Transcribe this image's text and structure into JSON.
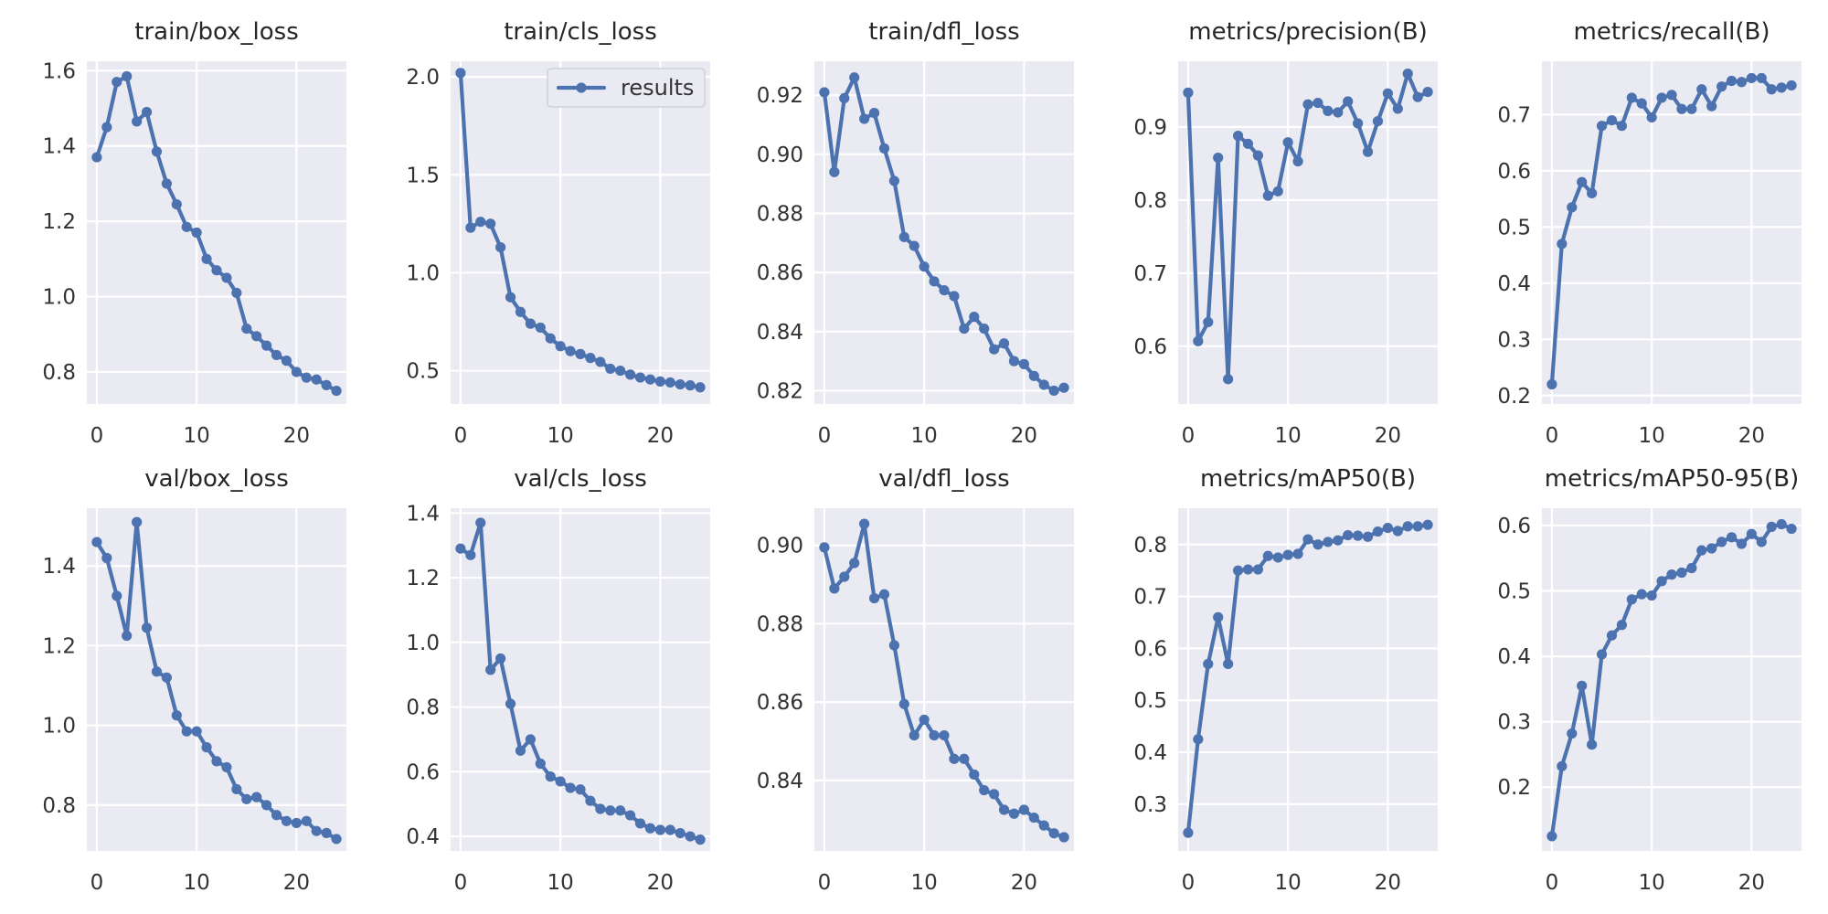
{
  "figure": {
    "line_color": "#4c72b0",
    "background": "#eaeaf2",
    "grid_color": "#ffffff"
  },
  "legend": {
    "label": "results",
    "panel": "train/cls_loss",
    "placement": "upper-right"
  },
  "chart_data": [
    {
      "type": "line",
      "title": "train/box_loss",
      "x": [
        0,
        1,
        2,
        3,
        4,
        5,
        6,
        7,
        8,
        9,
        10,
        11,
        12,
        13,
        14,
        15,
        16,
        17,
        18,
        19,
        20,
        21,
        22,
        23,
        24
      ],
      "values": [
        1.37,
        1.45,
        1.57,
        1.585,
        1.465,
        1.49,
        1.385,
        1.3,
        1.245,
        1.185,
        1.17,
        1.1,
        1.07,
        1.05,
        1.01,
        0.915,
        0.895,
        0.87,
        0.845,
        0.83,
        0.8,
        0.785,
        0.78,
        0.765,
        0.75
      ],
      "xlim": [
        -1,
        25
      ],
      "ylim": [
        0.715,
        1.625
      ],
      "xticks": [
        0,
        10,
        20
      ],
      "xtick_labels": [
        "0",
        "10",
        "20"
      ],
      "yticks": [
        0.8,
        1.0,
        1.2,
        1.4,
        1.6
      ],
      "ytick_labels": [
        "0.8",
        "1.0",
        "1.2",
        "1.4",
        "1.6"
      ]
    },
    {
      "type": "line",
      "title": "train/cls_loss",
      "x": [
        0,
        1,
        2,
        3,
        4,
        5,
        6,
        7,
        8,
        9,
        10,
        11,
        12,
        13,
        14,
        15,
        16,
        17,
        18,
        19,
        20,
        21,
        22,
        23,
        24
      ],
      "values": [
        2.02,
        1.23,
        1.26,
        1.25,
        1.13,
        0.875,
        0.8,
        0.74,
        0.72,
        0.665,
        0.625,
        0.6,
        0.585,
        0.565,
        0.545,
        0.51,
        0.5,
        0.48,
        0.465,
        0.455,
        0.445,
        0.44,
        0.43,
        0.425,
        0.415
      ],
      "xlim": [
        -1,
        25
      ],
      "ylim": [
        0.33,
        2.08
      ],
      "xticks": [
        0,
        10,
        20
      ],
      "xtick_labels": [
        "0",
        "10",
        "20"
      ],
      "yticks": [
        0.5,
        1.0,
        1.5,
        2.0
      ],
      "ytick_labels": [
        "0.5",
        "1.0",
        "1.5",
        "2.0"
      ]
    },
    {
      "type": "line",
      "title": "train/dfl_loss",
      "x": [
        0,
        1,
        2,
        3,
        4,
        5,
        6,
        7,
        8,
        9,
        10,
        11,
        12,
        13,
        14,
        15,
        16,
        17,
        18,
        19,
        20,
        21,
        22,
        23,
        24
      ],
      "values": [
        0.921,
        0.894,
        0.919,
        0.926,
        0.912,
        0.914,
        0.902,
        0.891,
        0.872,
        0.869,
        0.862,
        0.857,
        0.854,
        0.852,
        0.841,
        0.845,
        0.841,
        0.834,
        0.836,
        0.83,
        0.829,
        0.825,
        0.822,
        0.82,
        0.821
      ],
      "xlim": [
        -1,
        25
      ],
      "ylim": [
        0.8155,
        0.9315
      ],
      "xticks": [
        0,
        10,
        20
      ],
      "xtick_labels": [
        "0",
        "10",
        "20"
      ],
      "yticks": [
        0.82,
        0.84,
        0.86,
        0.88,
        0.9,
        0.92
      ],
      "ytick_labels": [
        "0.82",
        "0.84",
        "0.86",
        "0.88",
        "0.90",
        "0.92"
      ]
    },
    {
      "type": "line",
      "title": "metrics/precision(B)",
      "x": [
        0,
        1,
        2,
        3,
        4,
        5,
        6,
        7,
        8,
        9,
        10,
        11,
        12,
        13,
        14,
        15,
        16,
        17,
        18,
        19,
        20,
        21,
        22,
        23,
        24
      ],
      "values": [
        0.947,
        0.607,
        0.633,
        0.858,
        0.555,
        0.888,
        0.877,
        0.861,
        0.806,
        0.812,
        0.879,
        0.853,
        0.931,
        0.933,
        0.922,
        0.92,
        0.935,
        0.905,
        0.866,
        0.908,
        0.946,
        0.925,
        0.973,
        0.941,
        0.948
      ],
      "xlim": [
        -1,
        25
      ],
      "ylim": [
        0.521,
        0.99
      ],
      "xticks": [
        0,
        10,
        20
      ],
      "xtick_labels": [
        "0",
        "10",
        "20"
      ],
      "yticks": [
        0.6,
        0.7,
        0.8,
        0.9
      ],
      "ytick_labels": [
        "0.6",
        "0.7",
        "0.8",
        "0.9"
      ]
    },
    {
      "type": "line",
      "title": "metrics/recall(B)",
      "x": [
        0,
        1,
        2,
        3,
        4,
        5,
        6,
        7,
        8,
        9,
        10,
        11,
        12,
        13,
        14,
        15,
        16,
        17,
        18,
        19,
        20,
        21,
        22,
        23,
        24
      ],
      "values": [
        0.22,
        0.47,
        0.535,
        0.58,
        0.56,
        0.68,
        0.69,
        0.68,
        0.73,
        0.72,
        0.695,
        0.73,
        0.735,
        0.71,
        0.71,
        0.745,
        0.715,
        0.75,
        0.76,
        0.758,
        0.765,
        0.765,
        0.745,
        0.748,
        0.752
      ],
      "xlim": [
        -1,
        25
      ],
      "ylim": [
        0.185,
        0.795
      ],
      "xticks": [
        0,
        10,
        20
      ],
      "xtick_labels": [
        "0",
        "10",
        "20"
      ],
      "yticks": [
        0.2,
        0.3,
        0.4,
        0.5,
        0.6,
        0.7
      ],
      "ytick_labels": [
        "0.2",
        "0.3",
        "0.4",
        "0.5",
        "0.6",
        "0.7"
      ]
    },
    {
      "type": "line",
      "title": "val/box_loss",
      "x": [
        0,
        1,
        2,
        3,
        4,
        5,
        6,
        7,
        8,
        9,
        10,
        11,
        12,
        13,
        14,
        15,
        16,
        17,
        18,
        19,
        20,
        21,
        22,
        23,
        24
      ],
      "values": [
        1.46,
        1.42,
        1.325,
        1.225,
        1.51,
        1.245,
        1.135,
        1.12,
        1.025,
        0.985,
        0.985,
        0.945,
        0.91,
        0.895,
        0.84,
        0.815,
        0.82,
        0.8,
        0.775,
        0.76,
        0.755,
        0.76,
        0.735,
        0.73,
        0.715
      ],
      "xlim": [
        -1,
        25
      ],
      "ylim": [
        0.685,
        1.545
      ],
      "xticks": [
        0,
        10,
        20
      ],
      "xtick_labels": [
        "0",
        "10",
        "20"
      ],
      "yticks": [
        0.8,
        1.0,
        1.2,
        1.4
      ],
      "ytick_labels": [
        "0.8",
        "1.0",
        "1.2",
        "1.4"
      ]
    },
    {
      "type": "line",
      "title": "val/cls_loss",
      "x": [
        0,
        1,
        2,
        3,
        4,
        5,
        6,
        7,
        8,
        9,
        10,
        11,
        12,
        13,
        14,
        15,
        16,
        17,
        18,
        19,
        20,
        21,
        22,
        23,
        24
      ],
      "values": [
        1.29,
        1.27,
        1.37,
        0.915,
        0.95,
        0.81,
        0.665,
        0.7,
        0.625,
        0.585,
        0.57,
        0.55,
        0.545,
        0.51,
        0.485,
        0.48,
        0.48,
        0.465,
        0.44,
        0.425,
        0.42,
        0.42,
        0.41,
        0.4,
        0.39
      ],
      "xlim": [
        -1,
        25
      ],
      "ylim": [
        0.355,
        1.415
      ],
      "xticks": [
        0,
        10,
        20
      ],
      "xtick_labels": [
        "0",
        "10",
        "20"
      ],
      "yticks": [
        0.4,
        0.6,
        0.8,
        1.0,
        1.2,
        1.4
      ],
      "ytick_labels": [
        "0.4",
        "0.6",
        "0.8",
        "1.0",
        "1.2",
        "1.4"
      ]
    },
    {
      "type": "line",
      "title": "val/dfl_loss",
      "x": [
        0,
        1,
        2,
        3,
        4,
        5,
        6,
        7,
        8,
        9,
        10,
        11,
        12,
        13,
        14,
        15,
        16,
        17,
        18,
        19,
        20,
        21,
        22,
        23,
        24
      ],
      "values": [
        0.8995,
        0.889,
        0.892,
        0.8955,
        0.9055,
        0.8865,
        0.8875,
        0.8745,
        0.8595,
        0.8515,
        0.8555,
        0.8515,
        0.8515,
        0.8455,
        0.8455,
        0.8415,
        0.8375,
        0.8365,
        0.8325,
        0.8315,
        0.8325,
        0.8305,
        0.8285,
        0.8265,
        0.8255
      ],
      "xlim": [
        -1,
        25
      ],
      "ylim": [
        0.822,
        0.9095
      ],
      "xticks": [
        0,
        10,
        20
      ],
      "xtick_labels": [
        "0",
        "10",
        "20"
      ],
      "yticks": [
        0.84,
        0.86,
        0.88,
        0.9
      ],
      "ytick_labels": [
        "0.84",
        "0.86",
        "0.88",
        "0.90"
      ]
    },
    {
      "type": "line",
      "title": "metrics/mAP50(B)",
      "x": [
        0,
        1,
        2,
        3,
        4,
        5,
        6,
        7,
        8,
        9,
        10,
        11,
        12,
        13,
        14,
        15,
        16,
        17,
        18,
        19,
        20,
        21,
        22,
        23,
        24
      ],
      "values": [
        0.245,
        0.425,
        0.57,
        0.66,
        0.57,
        0.75,
        0.752,
        0.752,
        0.778,
        0.775,
        0.78,
        0.782,
        0.81,
        0.8,
        0.805,
        0.808,
        0.818,
        0.817,
        0.815,
        0.825,
        0.832,
        0.826,
        0.835,
        0.835,
        0.838
      ],
      "xlim": [
        -1,
        25
      ],
      "ylim": [
        0.21,
        0.87
      ],
      "xticks": [
        0,
        10,
        20
      ],
      "xtick_labels": [
        "0",
        "10",
        "20"
      ],
      "yticks": [
        0.3,
        0.4,
        0.5,
        0.6,
        0.7,
        0.8
      ],
      "ytick_labels": [
        "0.3",
        "0.4",
        "0.5",
        "0.6",
        "0.7",
        "0.8"
      ]
    },
    {
      "type": "line",
      "title": "metrics/mAP50-95(B)",
      "x": [
        0,
        1,
        2,
        3,
        4,
        5,
        6,
        7,
        8,
        9,
        10,
        11,
        12,
        13,
        14,
        15,
        16,
        17,
        18,
        19,
        20,
        21,
        22,
        23,
        24
      ],
      "values": [
        0.125,
        0.232,
        0.282,
        0.355,
        0.265,
        0.403,
        0.432,
        0.448,
        0.487,
        0.495,
        0.493,
        0.515,
        0.525,
        0.528,
        0.535,
        0.562,
        0.565,
        0.575,
        0.582,
        0.572,
        0.587,
        0.575,
        0.598,
        0.602,
        0.595
      ],
      "xlim": [
        -1,
        25
      ],
      "ylim": [
        0.1025,
        0.6265
      ],
      "xticks": [
        0,
        10,
        20
      ],
      "xtick_labels": [
        "0",
        "10",
        "20"
      ],
      "yticks": [
        0.2,
        0.3,
        0.4,
        0.5,
        0.6
      ],
      "ytick_labels": [
        "0.2",
        "0.3",
        "0.4",
        "0.5",
        "0.6"
      ]
    }
  ]
}
